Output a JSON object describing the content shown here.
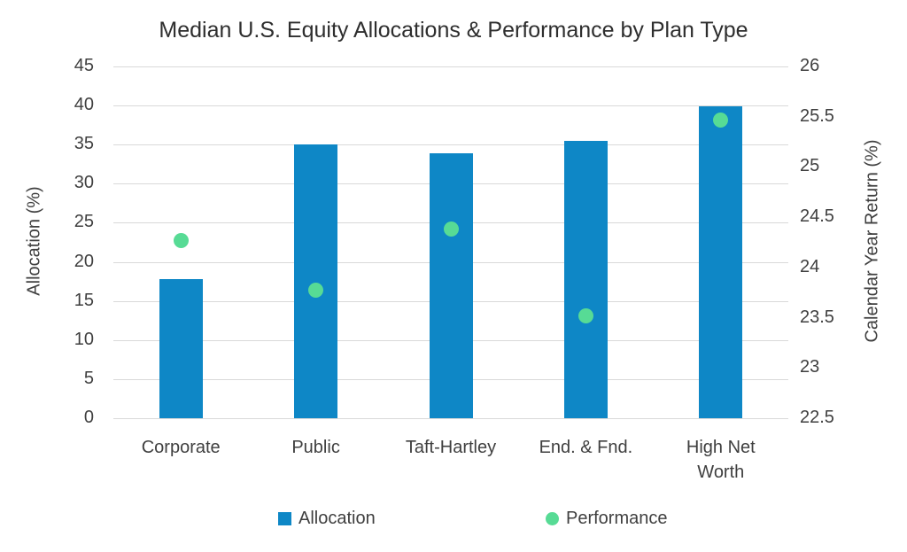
{
  "title": "Median U.S. Equity Allocations & Performance by Plan Type",
  "chart_data": {
    "type": "combo-bar-scatter",
    "title": "Median U.S. Equity Allocations & Performance by Plan Type",
    "categories": [
      "Corporate",
      "Public",
      "Taft-Hartley",
      "End. & Fnd.",
      "High Net Worth"
    ],
    "series": [
      {
        "name": "Allocation",
        "type": "bar",
        "axis": "left",
        "color": "#0e87c6",
        "values": [
          17.8,
          35.0,
          33.9,
          35.5,
          39.9
        ]
      },
      {
        "name": "Performance",
        "type": "scatter",
        "axis": "right",
        "color": "#57db95",
        "values": [
          24.27,
          23.77,
          24.38,
          23.52,
          25.47
        ]
      }
    ],
    "left_axis": {
      "label": "Allocation (%)",
      "min": 0,
      "max": 45,
      "step": 5,
      "ticks": [
        "45",
        "40",
        "35",
        "30",
        "25",
        "20",
        "15",
        "10",
        "5",
        "0"
      ]
    },
    "right_axis": {
      "label": "Calendar Year Return (%)",
      "min": 22.5,
      "max": 26,
      "step": 0.5,
      "ticks": [
        "26",
        "25.5",
        "25",
        "24.5",
        "24",
        "23.5",
        "23",
        "22.5"
      ]
    },
    "grid": true,
    "legend_position": "bottom"
  },
  "legend": {
    "items": [
      {
        "label": "Allocation",
        "shape": "square",
        "color": "#0e87c6"
      },
      {
        "label": "Performance",
        "shape": "circle",
        "color": "#57db95"
      }
    ]
  },
  "colors": {
    "background": "#ffffff",
    "gridline": "#d9d9d9",
    "text": "#3f3f3f"
  }
}
